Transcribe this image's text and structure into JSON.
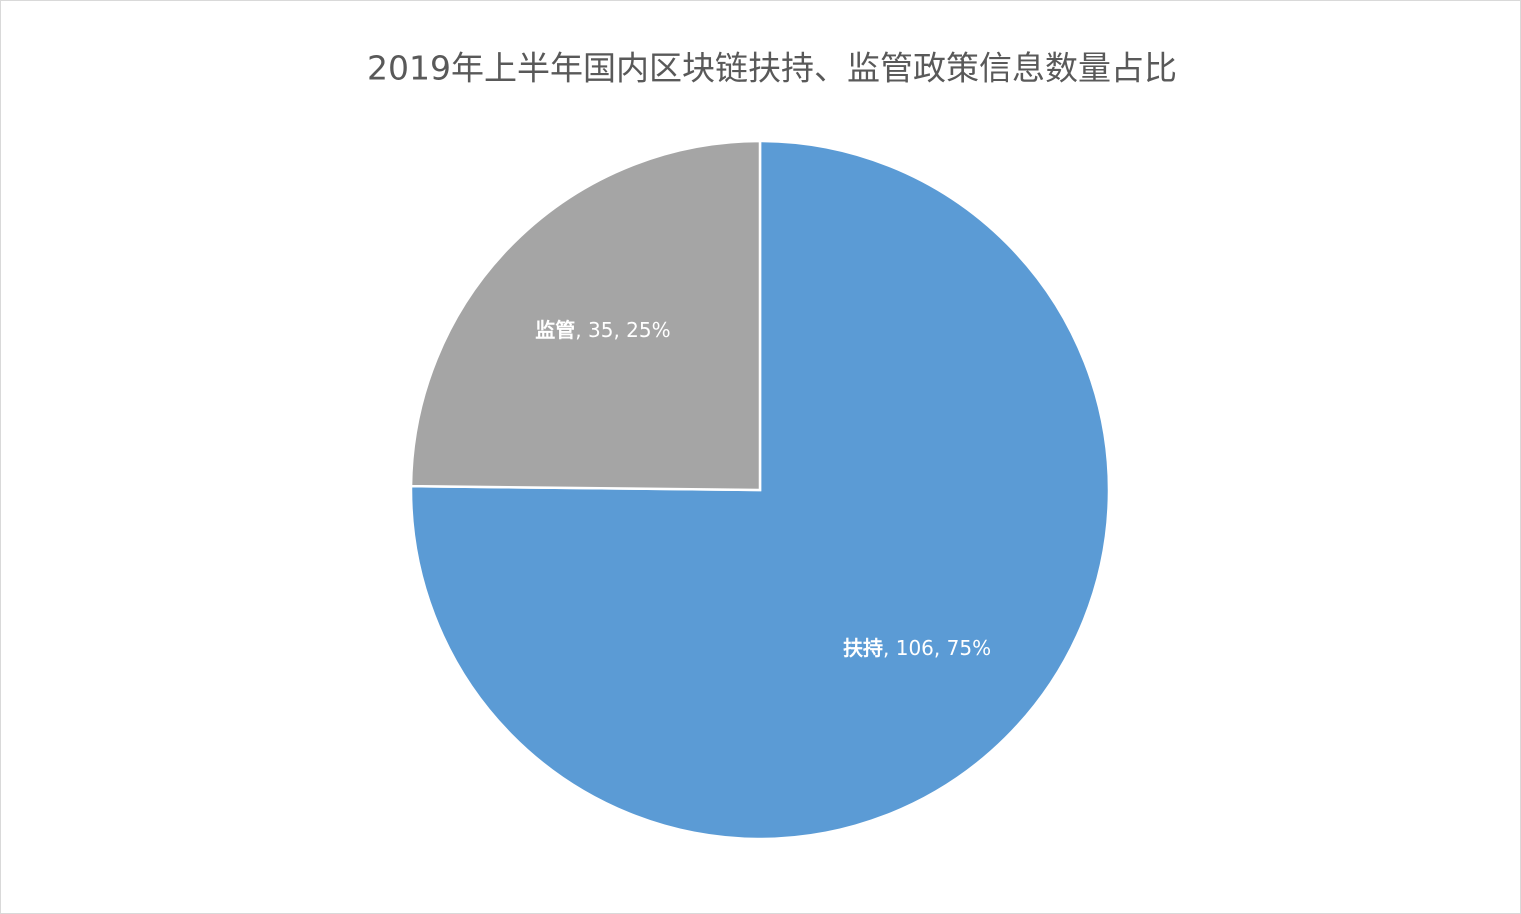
{
  "chart_data": {
    "type": "pie",
    "title": "2019年上半年国内区块链扶持、监管政策信息数量占比",
    "categories": [
      "扶持",
      "监管"
    ],
    "values": [
      106,
      35
    ],
    "percent_labels": [
      "75%",
      "25%"
    ],
    "label_separator": ", ",
    "colors": [
      "#5b9bd5",
      "#a5a5a5"
    ]
  }
}
